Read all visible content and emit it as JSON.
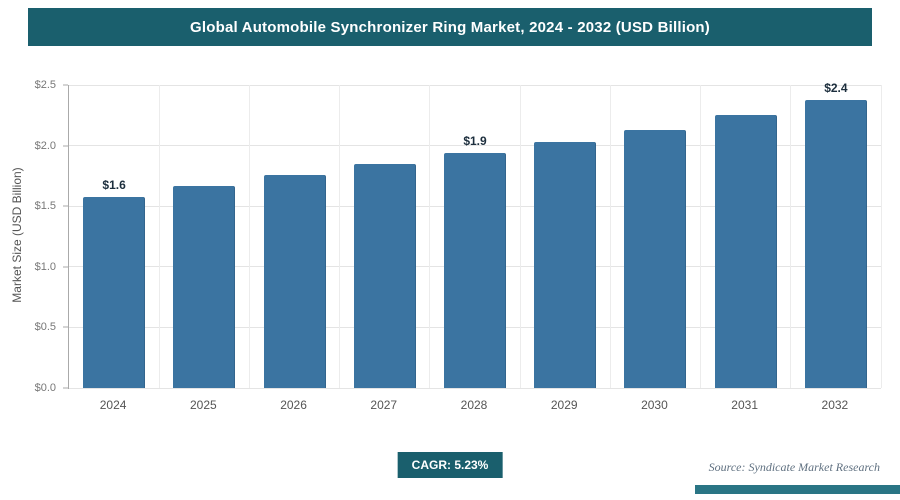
{
  "header": {
    "title": "Global Automobile Synchronizer Ring Market, 2024 - 2032 (USD Billion)"
  },
  "chart_data": {
    "type": "bar",
    "title": "Global Automobile Synchronizer Ring Market, 2024 - 2032 (USD Billion)",
    "categories": [
      "2024",
      "2025",
      "2026",
      "2027",
      "2028",
      "2029",
      "2030",
      "2031",
      "2032"
    ],
    "values": [
      1.58,
      1.67,
      1.76,
      1.85,
      1.94,
      2.03,
      2.13,
      2.25,
      2.38
    ],
    "bar_labels": [
      "$1.6",
      "",
      "",
      "",
      "$1.9",
      "",
      "",
      "",
      "$2.4"
    ],
    "xlabel": "",
    "ylabel": "Market Size (USD Billion)",
    "ylim": [
      0,
      2.5
    ],
    "yticks": [
      0,
      0.5,
      1,
      1.5,
      2,
      2.5
    ],
    "ytick_labels": [
      "$0.0",
      "$0.5",
      "$1.0",
      "$1.5",
      "$2.0",
      "$2.5"
    ],
    "grid": true,
    "legend": false,
    "bar_color": "#3b74a1"
  },
  "footer": {
    "cagr_label": "CAGR: 5.23%",
    "source": "Source: Syndicate Market Research"
  },
  "colors": {
    "accent": "#1a5f6d",
    "strip": "#2a7585",
    "bar": "#3b74a1"
  }
}
